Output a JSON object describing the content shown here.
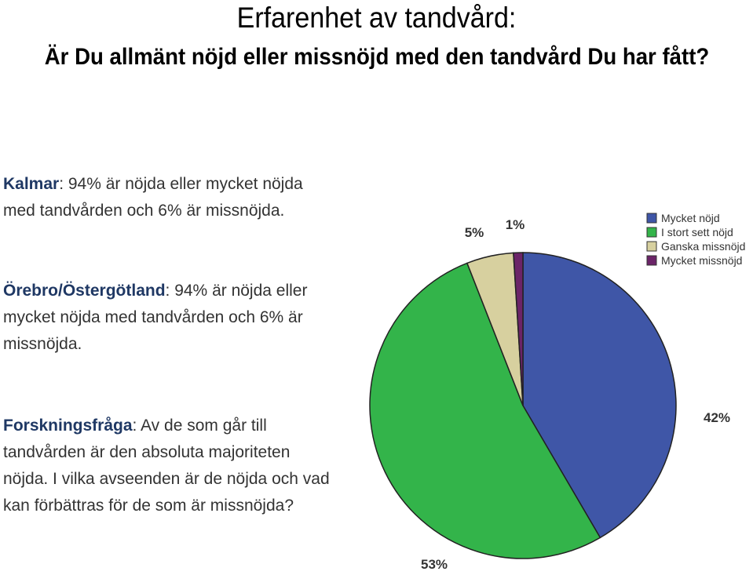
{
  "header": {
    "title": "Erfarenhet av tandvård:",
    "question": "Är Du allmänt nöjd eller missnöjd med den tandvård Du har fått?"
  },
  "paragraphs": [
    {
      "label": "Kalmar",
      "text": ": 94% är nöjda eller mycket nöjda med tandvården och 6% är missnöjda."
    },
    {
      "label": "Örebro/Östergötland",
      "text": ": 94% är nöjda eller mycket nöjda med tandvården och 6% är missnöjda."
    },
    {
      "label": "Forskningsfråga",
      "text": ": Av de som går till tandvården är den absoluta majoriteten nöjda. I vilka avseenden är de nöjda och vad kan förbättras för de som är missnöjda?"
    }
  ],
  "chart_data": {
    "type": "pie",
    "categories": [
      "Mycket nöjd",
      "I stort sett nöjd",
      "Ganska missnöjd",
      "Mycket missnöjd"
    ],
    "values": [
      42,
      53,
      5,
      1
    ],
    "value_labels": [
      "42%",
      "53%",
      "5%",
      "1%"
    ],
    "colors": [
      "#3f56a7",
      "#33b44a",
      "#d7d09f",
      "#6b2468"
    ],
    "legend": "top-right"
  }
}
